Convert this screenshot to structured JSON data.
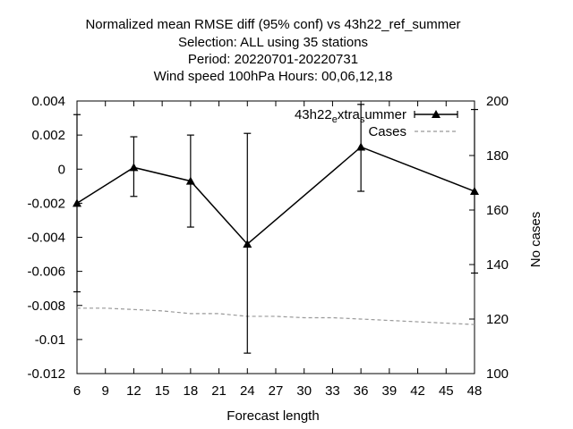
{
  "chart_data": {
    "type": "line",
    "title_lines": [
      "Normalized mean RMSE diff (95% conf) vs 43h22_ref_summer",
      "Selection: ALL using    35 stations",
      "Period: 20220701-20220731",
      "Wind speed 100hPa   Hours:  00,06,12,18"
    ],
    "xlabel": "Forecast length",
    "ylabel": "",
    "y2label": "No cases",
    "xlim": [
      6,
      48
    ],
    "ylim": [
      -0.012,
      0.004
    ],
    "y2lim": [
      100,
      200
    ],
    "x_ticks": [
      6,
      9,
      12,
      15,
      18,
      21,
      24,
      27,
      30,
      33,
      36,
      39,
      42,
      45,
      48
    ],
    "y_ticks": [
      -0.012,
      -0.01,
      -0.008,
      -0.006,
      -0.004,
      -0.002,
      0,
      0.002,
      0.004
    ],
    "y_tick_labels": [
      "-0.012",
      "-0.01",
      "-0.008",
      "-0.006",
      "-0.004",
      "-0.002",
      "0",
      "0.002",
      "0.004"
    ],
    "y2_ticks": [
      100,
      120,
      140,
      160,
      180,
      200
    ],
    "grid": false,
    "legend_position": "top-right",
    "series": [
      {
        "name": "43h22_extra_summer",
        "axis": "y",
        "color": "#000000",
        "marker": "triangle",
        "x": [
          6,
          12,
          18,
          24,
          36,
          48
        ],
        "values": [
          -0.002,
          0.0001,
          -0.0007,
          -0.0044,
          0.0013,
          -0.0013
        ],
        "err_low": [
          -0.0072,
          -0.0016,
          -0.0034,
          -0.0108,
          -0.0013,
          -0.0061
        ],
        "err_high": [
          0.0032,
          0.0019,
          0.002,
          0.0021,
          0.0038,
          0.0035
        ]
      },
      {
        "name": "Cases",
        "axis": "y2",
        "color": "#999999",
        "dashed": true,
        "x": [
          6,
          9,
          12,
          15,
          18,
          21,
          24,
          27,
          30,
          33,
          36,
          39,
          42,
          45,
          48
        ],
        "values": [
          124,
          124,
          123.5,
          123,
          122,
          122,
          121,
          121,
          120.5,
          120.5,
          120,
          119.5,
          119,
          118.5,
          118
        ]
      }
    ]
  }
}
